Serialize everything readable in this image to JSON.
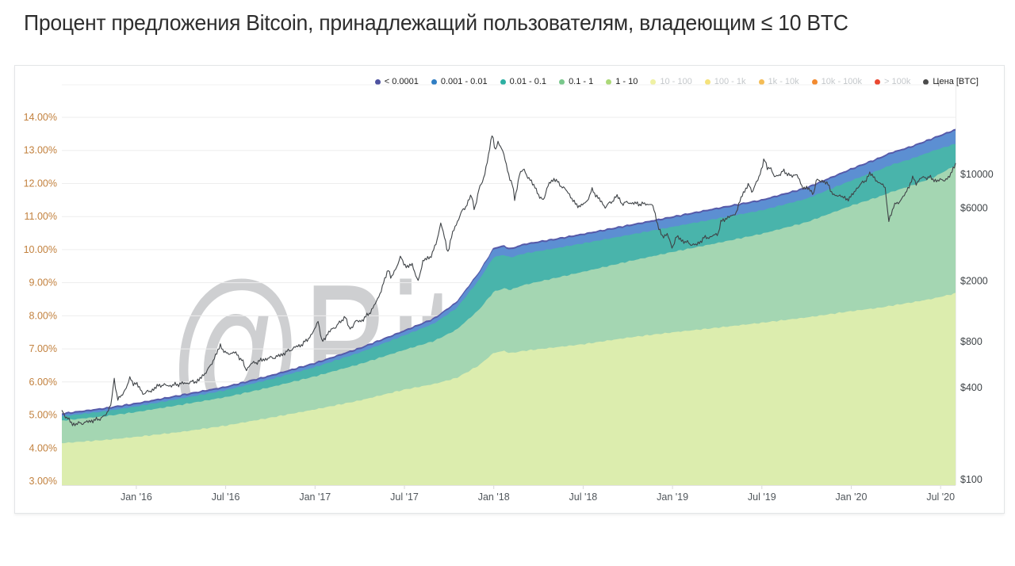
{
  "title": "Процент предложения Bitcoin, принадлежащий пользователям, владеющим ≤ 10 BTC",
  "watermark": "@BitOracle",
  "legend": {
    "items": [
      {
        "label": "< 0.0001",
        "color": "#4e52a0",
        "active": true
      },
      {
        "label": "0.001 - 0.01",
        "color": "#2f7dc3",
        "active": true
      },
      {
        "label": "0.01 - 0.1",
        "color": "#2cafa2",
        "active": true
      },
      {
        "label": "0.1 - 1",
        "color": "#78c78b",
        "active": true
      },
      {
        "label": "1 - 10",
        "color": "#abd878",
        "active": true
      },
      {
        "label": "10 - 100",
        "color": "#eff1a3",
        "active": false
      },
      {
        "label": "100 - 1k",
        "color": "#f5e27b",
        "active": false
      },
      {
        "label": "1k - 10k",
        "color": "#f4bc55",
        "active": false
      },
      {
        "label": "10k - 100k",
        "color": "#f28a2e",
        "active": false
      },
      {
        "label": "> 100k",
        "color": "#ea4730",
        "active": false
      },
      {
        "label": "Цена [BTC]",
        "color": "#4a4a4a",
        "active": true
      }
    ]
  },
  "chart_data": {
    "type": "area",
    "subtype": "stacked-area with log price line overlay",
    "x_unit": "months since Aug 2015",
    "x_range": [
      0,
      60
    ],
    "x_ticks": [
      {
        "t": 5,
        "label": "Jan '16"
      },
      {
        "t": 11,
        "label": "Jul '16"
      },
      {
        "t": 17,
        "label": "Jan '17"
      },
      {
        "t": 23,
        "label": "Jul '17"
      },
      {
        "t": 29,
        "label": "Jan '18"
      },
      {
        "t": 35,
        "label": "Jul '18"
      },
      {
        "t": 41,
        "label": "Jan '19"
      },
      {
        "t": 47,
        "label": "Jul '19"
      },
      {
        "t": 53,
        "label": "Jan '20"
      },
      {
        "t": 59,
        "label": "Jul '20"
      }
    ],
    "y_left": {
      "min": 3,
      "max": 14,
      "step": 1,
      "format": "percent-2dp",
      "label_color": "#c2813e",
      "labels": [
        "3.00%",
        "4.00%",
        "5.00%",
        "6.00%",
        "7.00%",
        "8.00%",
        "9.00%",
        "10.00%",
        "11.00%",
        "12.00%",
        "13.00%",
        "14.00%"
      ]
    },
    "y_right": {
      "scale": "log",
      "format": "usd",
      "label_color": "#3e4347",
      "ticks": [
        10000,
        6000,
        2000,
        800,
        400,
        100
      ],
      "labels": [
        "$10000",
        "$6000",
        "$2000",
        "$800",
        "$400",
        "$100"
      ]
    },
    "grid": {
      "horizontal": true,
      "vertical": false,
      "color": "#ededed"
    },
    "stack": {
      "note": "cumulative upper boundaries (% of BTC supply) of the enabled balance bands, bottom band first",
      "t": [
        0,
        3,
        5,
        8,
        11,
        14,
        17,
        20,
        23,
        25,
        26.5,
        28,
        29,
        29.7,
        30.1,
        31,
        33,
        35,
        38,
        41,
        44,
        47,
        50,
        53,
        55,
        55.6,
        57,
        58.5,
        60
      ],
      "bands": [
        {
          "name": "1 - 10",
          "fill": "#dcedae",
          "cum": [
            4.15,
            4.25,
            4.34,
            4.49,
            4.68,
            4.92,
            5.17,
            5.44,
            5.77,
            5.94,
            6.12,
            6.5,
            6.88,
            6.94,
            6.87,
            6.94,
            7.04,
            7.14,
            7.34,
            7.5,
            7.64,
            7.79,
            7.95,
            8.14,
            8.25,
            8.3,
            8.4,
            8.52,
            8.68
          ]
        },
        {
          "name": "0.1 - 1",
          "fill": "#a4d6b2",
          "cum": [
            4.83,
            4.97,
            5.09,
            5.31,
            5.54,
            5.84,
            6.17,
            6.54,
            6.97,
            7.24,
            7.58,
            8.18,
            8.73,
            8.83,
            8.78,
            8.93,
            9.13,
            9.33,
            9.64,
            9.93,
            10.2,
            10.48,
            10.83,
            11.33,
            11.62,
            11.73,
            11.93,
            12.18,
            12.55
          ]
        },
        {
          "name": "0.01 - 0.1",
          "fill": "#49b4ab",
          "cum": [
            4.96,
            5.12,
            5.26,
            5.5,
            5.75,
            6.08,
            6.45,
            6.89,
            7.41,
            7.77,
            8.23,
            9.08,
            9.78,
            9.84,
            9.76,
            9.88,
            10.03,
            10.19,
            10.44,
            10.69,
            10.94,
            11.19,
            11.54,
            12.09,
            12.43,
            12.55,
            12.74,
            12.99,
            13.2
          ]
        },
        {
          "name": "0.001 - 0.01",
          "fill": "#5c8fd2",
          "cum": [
            5.01,
            5.18,
            5.32,
            5.57,
            5.82,
            6.16,
            6.54,
            6.99,
            7.52,
            7.89,
            8.38,
            9.28,
            10.02,
            10.08,
            9.99,
            10.13,
            10.28,
            10.44,
            10.7,
            10.96,
            11.22,
            11.47,
            11.84,
            12.41,
            12.76,
            12.89,
            13.08,
            13.34,
            13.6
          ]
        },
        {
          "name": "< 0.0001",
          "fill": "#565aa9",
          "cum": [
            5.06,
            5.23,
            5.37,
            5.62,
            5.87,
            6.21,
            6.59,
            7.04,
            7.57,
            7.94,
            8.43,
            9.33,
            10.07,
            10.13,
            10.04,
            10.18,
            10.33,
            10.49,
            10.75,
            11.01,
            11.27,
            11.52,
            11.89,
            12.46,
            12.81,
            12.94,
            13.13,
            13.39,
            13.65
          ]
        }
      ]
    },
    "price": {
      "name": "Цена [BTC]",
      "color": "#3f4347",
      "axis": "right",
      "points": [
        [
          0,
          278
        ],
        [
          0.7,
          232
        ],
        [
          1.6,
          236
        ],
        [
          2.4,
          247
        ],
        [
          3.0,
          268
        ],
        [
          3.35,
          330
        ],
        [
          3.5,
          455
        ],
        [
          3.75,
          338
        ],
        [
          4.1,
          357
        ],
        [
          4.55,
          460
        ],
        [
          4.8,
          428
        ],
        [
          5.0,
          434
        ],
        [
          5.4,
          368
        ],
        [
          5.9,
          375
        ],
        [
          6.6,
          420
        ],
        [
          7.4,
          413
        ],
        [
          8.3,
          428
        ],
        [
          9.2,
          448
        ],
        [
          9.9,
          535
        ],
        [
          10.5,
          705
        ],
        [
          10.65,
          765
        ],
        [
          11.0,
          670
        ],
        [
          11.6,
          678
        ],
        [
          12.1,
          605
        ],
        [
          12.35,
          522
        ],
        [
          12.7,
          577
        ],
        [
          13.5,
          608
        ],
        [
          14.4,
          637
        ],
        [
          15.3,
          705
        ],
        [
          16.2,
          772
        ],
        [
          16.8,
          905
        ],
        [
          17.05,
          1005
        ],
        [
          17.2,
          1125
        ],
        [
          17.45,
          788
        ],
        [
          17.9,
          915
        ],
        [
          18.6,
          1055
        ],
        [
          19.05,
          1185
        ],
        [
          19.3,
          955
        ],
        [
          19.7,
          1075
        ],
        [
          20.2,
          1105
        ],
        [
          20.9,
          1335
        ],
        [
          21.5,
          1775
        ],
        [
          21.9,
          2420
        ],
        [
          22.1,
          2060
        ],
        [
          22.5,
          2540
        ],
        [
          22.75,
          2880
        ],
        [
          23.15,
          2460
        ],
        [
          23.55,
          2570
        ],
        [
          23.9,
          1935
        ],
        [
          24.25,
          2730
        ],
        [
          24.7,
          2860
        ],
        [
          25.1,
          3420
        ],
        [
          25.45,
          4830
        ],
        [
          25.9,
          3080
        ],
        [
          26.3,
          4330
        ],
        [
          26.85,
          5720
        ],
        [
          27.25,
          6480
        ],
        [
          27.5,
          7350
        ],
        [
          27.7,
          5840
        ],
        [
          28.05,
          8150
        ],
        [
          28.4,
          10050
        ],
        [
          28.65,
          13500
        ],
        [
          28.9,
          19100
        ],
        [
          29.1,
          13900
        ],
        [
          29.3,
          16600
        ],
        [
          29.65,
          13700
        ],
        [
          29.95,
          10300
        ],
        [
          30.25,
          8500
        ],
        [
          30.4,
          6850
        ],
        [
          30.75,
          10350
        ],
        [
          31.05,
          10750
        ],
        [
          31.4,
          9150
        ],
        [
          31.75,
          8350
        ],
        [
          32.1,
          6880
        ],
        [
          32.35,
          6980
        ],
        [
          32.75,
          8950
        ],
        [
          33.05,
          9350
        ],
        [
          33.55,
          8350
        ],
        [
          34.05,
          7480
        ],
        [
          34.45,
          6420
        ],
        [
          34.85,
          6220
        ],
        [
          35.25,
          6680
        ],
        [
          35.6,
          7850
        ],
        [
          36.0,
          7020
        ],
        [
          36.45,
          6150
        ],
        [
          36.95,
          6680
        ],
        [
          37.25,
          7280
        ],
        [
          37.6,
          6420
        ],
        [
          38.1,
          6520
        ],
        [
          39.0,
          6420
        ],
        [
          39.6,
          6330
        ],
        [
          39.85,
          5450
        ],
        [
          40.1,
          4320
        ],
        [
          40.35,
          3880
        ],
        [
          40.65,
          4150
        ],
        [
          40.95,
          3280
        ],
        [
          41.25,
          3920
        ],
        [
          41.6,
          3680
        ],
        [
          42.1,
          3520
        ],
        [
          42.6,
          3460
        ],
        [
          43.1,
          3830
        ],
        [
          43.6,
          3880
        ],
        [
          44.05,
          4080
        ],
        [
          44.25,
          4880
        ],
        [
          44.7,
          5280
        ],
        [
          45.05,
          5350
        ],
        [
          45.35,
          5820
        ],
        [
          45.65,
          7250
        ],
        [
          45.9,
          7950
        ],
        [
          46.1,
          8520
        ],
        [
          46.35,
          7780
        ],
        [
          46.75,
          9350
        ],
        [
          47.0,
          11100
        ],
        [
          47.15,
          12850
        ],
        [
          47.35,
          10750
        ],
        [
          47.55,
          11350
        ],
        [
          47.8,
          9550
        ],
        [
          48.15,
          9950
        ],
        [
          48.45,
          10550
        ],
        [
          48.75,
          10150
        ],
        [
          49.05,
          9650
        ],
        [
          49.35,
          10150
        ],
        [
          49.65,
          8250
        ],
        [
          50.05,
          8150
        ],
        [
          50.45,
          7480
        ],
        [
          50.65,
          9150
        ],
        [
          51.05,
          9120
        ],
        [
          51.45,
          8520
        ],
        [
          51.85,
          7150
        ],
        [
          52.25,
          7350
        ],
        [
          52.65,
          6880
        ],
        [
          53.05,
          7250
        ],
        [
          53.35,
          8050
        ],
        [
          53.7,
          8650
        ],
        [
          54.05,
          9380
        ],
        [
          54.25,
          10150
        ],
        [
          54.55,
          9680
        ],
        [
          54.85,
          8620
        ],
        [
          55.1,
          8850
        ],
        [
          55.3,
          7920
        ],
        [
          55.5,
          4880
        ],
        [
          55.65,
          5380
        ],
        [
          55.85,
          6250
        ],
        [
          56.1,
          6420
        ],
        [
          56.35,
          6920
        ],
        [
          56.65,
          7520
        ],
        [
          56.95,
          8780
        ],
        [
          57.15,
          9480
        ],
        [
          57.35,
          8680
        ],
        [
          57.65,
          9380
        ],
        [
          57.95,
          9520
        ],
        [
          58.25,
          9620
        ],
        [
          58.5,
          9280
        ],
        [
          58.85,
          9120
        ],
        [
          59.15,
          9250
        ],
        [
          59.45,
          9180
        ],
        [
          59.65,
          9880
        ],
        [
          59.85,
          11050
        ],
        [
          60.0,
          11650
        ]
      ]
    }
  }
}
